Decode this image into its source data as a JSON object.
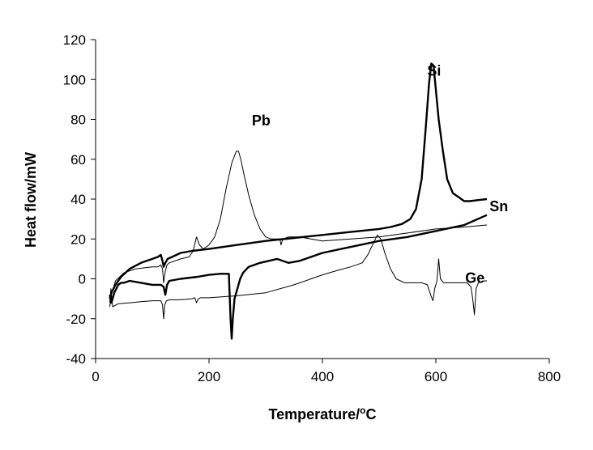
{
  "chart_data": {
    "type": "line",
    "title": "",
    "xlabel": "Temperature/",
    "xlabel_sup": "o",
    "xlabel_unit": "C",
    "ylabel": "Heat flow/mW",
    "xlim": [
      0,
      800
    ],
    "ylim": [
      -40,
      120
    ],
    "x_ticks": [
      0,
      200,
      400,
      600,
      800
    ],
    "y_ticks": [
      -40,
      -20,
      0,
      20,
      40,
      60,
      80,
      100,
      120
    ],
    "x_tick_labels": [
      "0",
      "200",
      "400",
      "600",
      "800"
    ],
    "y_tick_labels": [
      "-40",
      "-20",
      "0",
      "20",
      "40",
      "60",
      "80",
      "100",
      "120"
    ],
    "grid": false,
    "series": [
      {
        "name": "Si",
        "label_at": [
          597,
          102
        ],
        "line": "thick",
        "x": [
          25,
          28,
          35,
          45,
          60,
          80,
          100,
          110,
          115,
          118,
          120,
          123,
          127,
          135,
          150,
          170,
          200,
          250,
          300,
          350,
          400,
          450,
          500,
          520,
          540,
          555,
          565,
          575,
          582,
          588,
          592,
          596,
          600,
          605,
          612,
          620,
          630,
          640,
          650,
          660,
          675,
          690
        ],
        "y": [
          -10,
          -7,
          -3,
          1,
          5,
          8,
          10,
          11,
          12,
          9,
          6,
          8,
          10,
          11,
          13,
          14,
          15,
          17,
          19,
          20.5,
          22,
          23.5,
          25,
          26,
          27.5,
          30,
          35,
          50,
          75,
          98,
          108,
          107,
          95,
          80,
          65,
          50,
          43,
          41,
          39,
          39,
          39.5,
          40
        ]
      },
      {
        "name": "Sn",
        "label_at": [
          711,
          34
        ],
        "line": "thick",
        "x": [
          25,
          28,
          33,
          40,
          45,
          50,
          60,
          80,
          100,
          115,
          120,
          123,
          126,
          130,
          150,
          180,
          200,
          220,
          230,
          235,
          238,
          240,
          242,
          245,
          250,
          255,
          260,
          270,
          290,
          320,
          340,
          360,
          400,
          450,
          500,
          550,
          600,
          650,
          690
        ],
        "y": [
          -8,
          -12,
          -7,
          -3,
          -2,
          -2,
          -1,
          -2,
          -3,
          -3,
          -4,
          -8,
          -3,
          -1,
          0,
          1,
          2,
          2.5,
          2.5,
          2.5,
          -20,
          -30,
          -20,
          -10,
          -5,
          0,
          3,
          6,
          8,
          10,
          8,
          9,
          13,
          16,
          19,
          21,
          24,
          27,
          32
        ]
      },
      {
        "name": "Pb",
        "label_at": [
          292,
          77
        ],
        "line": "thin",
        "x": [
          25,
          28,
          35,
          50,
          70,
          100,
          110,
          115,
          118,
          120,
          123,
          126,
          130,
          150,
          165,
          172,
          178,
          183,
          190,
          200,
          210,
          220,
          230,
          240,
          248,
          252,
          256,
          262,
          270,
          280,
          290,
          300,
          310,
          320,
          325,
          327,
          330,
          340,
          360,
          380,
          400,
          450,
          500,
          550,
          600,
          650,
          690
        ],
        "y": [
          -14,
          -8,
          -1,
          3,
          5,
          6,
          6,
          7,
          5,
          -2,
          4,
          7,
          8,
          10,
          11,
          14,
          21,
          17,
          15,
          17,
          21,
          30,
          45,
          58,
          64,
          64,
          60,
          52,
          42,
          32,
          25,
          21,
          20,
          20,
          20,
          17,
          20,
          21,
          21,
          20,
          19,
          20,
          21,
          23,
          25,
          26,
          27
        ]
      },
      {
        "name": "Ge",
        "label_at": [
          669,
          -2
        ],
        "line": "thin",
        "x": [
          25,
          27,
          30,
          40,
          60,
          80,
          100,
          115,
          118,
          120,
          122,
          125,
          130,
          150,
          170,
          175,
          178,
          181,
          185,
          200,
          250,
          300,
          350,
          400,
          430,
          450,
          470,
          480,
          490,
          497,
          503,
          510,
          520,
          530,
          545,
          560,
          575,
          585,
          592,
          595,
          598,
          602,
          605,
          608,
          611,
          614,
          620,
          640,
          655,
          662,
          665,
          668,
          671,
          675,
          685,
          690
        ],
        "y": [
          -12,
          -5,
          -14,
          -12.5,
          -12,
          -11.5,
          -11,
          -11,
          -13,
          -20,
          -13,
          -11,
          -10.5,
          -10.5,
          -10,
          -9.5,
          -12,
          -10,
          -9.5,
          -9.5,
          -8.5,
          -7,
          -3,
          2,
          4.5,
          6,
          8,
          12,
          18,
          22,
          20,
          13,
          5,
          0,
          -2,
          -2,
          -2,
          -3,
          -9,
          -11,
          -5,
          -1,
          10,
          0,
          -1,
          -2,
          -2,
          -2,
          -2,
          -4,
          -10,
          -18,
          -5,
          -2,
          -1,
          -1
        ]
      }
    ]
  }
}
